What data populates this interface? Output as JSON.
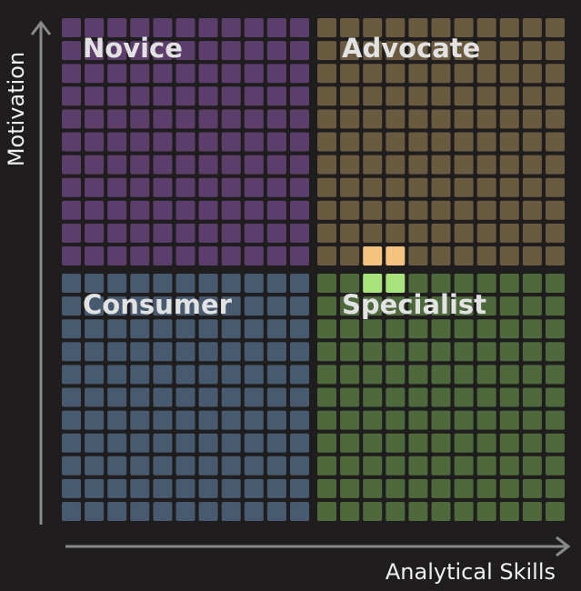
{
  "quadrants": [
    {
      "label": "Novice"
    },
    {
      "label": "Advocate"
    },
    {
      "label": "Consumer"
    },
    {
      "label": "Specialist"
    }
  ],
  "axes": {
    "x_label": "Analytical Skills",
    "y_label": "Motivation"
  }
}
